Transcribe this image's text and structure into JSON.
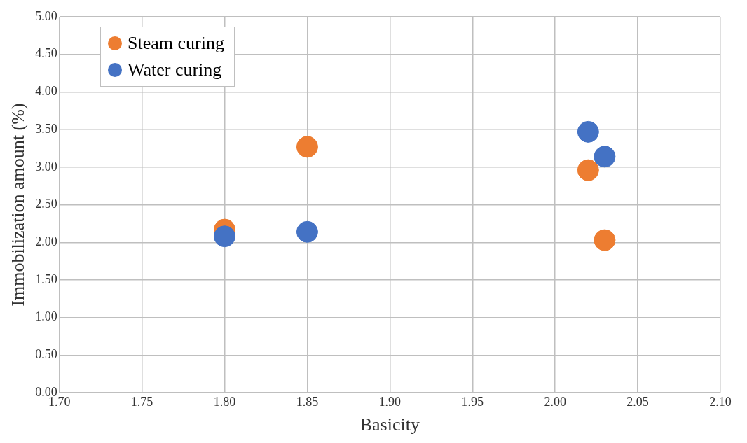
{
  "chart_data": {
    "type": "scatter",
    "xlabel": "Basicity",
    "ylabel": "Immobilization amount (%)",
    "xlim": [
      1.7,
      2.1
    ],
    "xticks": [
      {
        "value": 1.7,
        "label": "1.70"
      },
      {
        "value": 1.75,
        "label": "1.75"
      },
      {
        "value": 1.8,
        "label": "1.80"
      },
      {
        "value": 1.85,
        "label": "1.85"
      },
      {
        "value": 1.9,
        "label": "1.90"
      },
      {
        "value": 1.95,
        "label": "1.95"
      },
      {
        "value": 2.0,
        "label": "2.00"
      },
      {
        "value": 2.05,
        "label": "2.05"
      },
      {
        "value": 2.1,
        "label": "2.10"
      }
    ],
    "ylim": [
      0,
      5
    ],
    "yticks": [
      {
        "value": 0,
        "label": "0.00"
      },
      {
        "value": 0.5,
        "label": "0.50"
      },
      {
        "value": 1,
        "label": "1.00"
      },
      {
        "value": 1.5,
        "label": "1.50"
      },
      {
        "value": 2,
        "label": "2.00"
      },
      {
        "value": 2.5,
        "label": "2.50"
      },
      {
        "value": 3,
        "label": "3.00"
      },
      {
        "value": 3.5,
        "label": "3.50"
      },
      {
        "value": 4,
        "label": "4.00"
      },
      {
        "value": 4.5,
        "label": "4.50"
      },
      {
        "value": 5,
        "label": "5.00"
      }
    ],
    "grid": true,
    "legend": "top left",
    "marker": "circle",
    "series": [
      {
        "name": "Steam curing",
        "color": "#ed7d31",
        "x": [
          1.8,
          1.85,
          2.02,
          2.03
        ],
        "values": [
          2.17,
          3.27,
          2.96,
          2.03
        ]
      },
      {
        "name": "Water curing",
        "color": "#4472c4",
        "x": [
          1.8,
          1.85,
          2.02,
          2.03
        ],
        "values": [
          2.08,
          2.14,
          3.47,
          3.14
        ]
      }
    ]
  }
}
